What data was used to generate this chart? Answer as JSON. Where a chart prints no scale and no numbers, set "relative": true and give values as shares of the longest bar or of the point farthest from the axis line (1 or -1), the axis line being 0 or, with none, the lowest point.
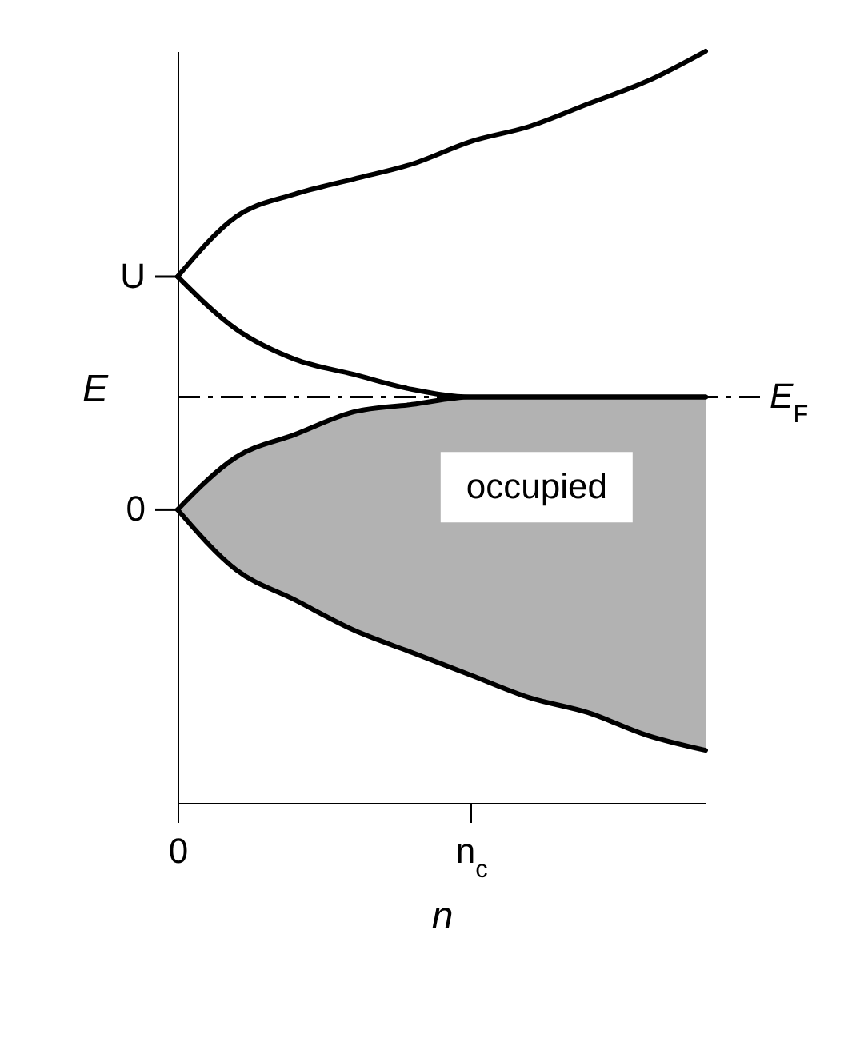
{
  "chart_data": {
    "type": "line",
    "relative": true,
    "xlabel": "n",
    "ylabel": "E",
    "categories": [
      "0",
      null,
      null,
      null,
      null,
      "n$_{c}$",
      null,
      null,
      null,
      null
    ],
    "series": [
      {
        "color": "#000000",
        "values": [
          0.7,
          0.78,
          0.81,
          0.83,
          0.85,
          0.88,
          0.9,
          0.93,
          0.96,
          1.0
        ]
      },
      {
        "color": "#000000",
        "values": [
          0.7,
          0.63,
          0.59,
          0.57,
          0.55,
          0.54,
          0.54,
          0.54,
          0.54,
          0.54
        ]
      },
      {
        "color": "#000000",
        "values": [
          0.39,
          0.46,
          0.49,
          0.52,
          0.53,
          0.54,
          0.54,
          0.54,
          0.54,
          0.54
        ]
      },
      {
        "color": "#000000",
        "values": [
          0.39,
          0.31,
          0.27,
          0.23,
          0.2,
          0.17,
          0.14,
          0.12,
          0.09,
          0.07
        ],
        "lower": [
          0.39,
          0.31,
          0.27,
          0.23,
          0.2,
          0.17,
          0.14,
          0.12,
          0.09,
          0.07
        ],
        "upper": [
          0.39,
          0.46,
          0.49,
          0.52,
          0.53,
          0.54,
          0.54,
          0.54,
          0.54,
          0.54
        ]
      }
    ],
    "ref_lines": [
      {
        "axis": "y",
        "value": 0.54,
        "label": "E$_{F}$",
        "line_style": "dashed"
      }
    ],
    "annotations": [
      "U",
      "0",
      "occupied"
    ]
  }
}
